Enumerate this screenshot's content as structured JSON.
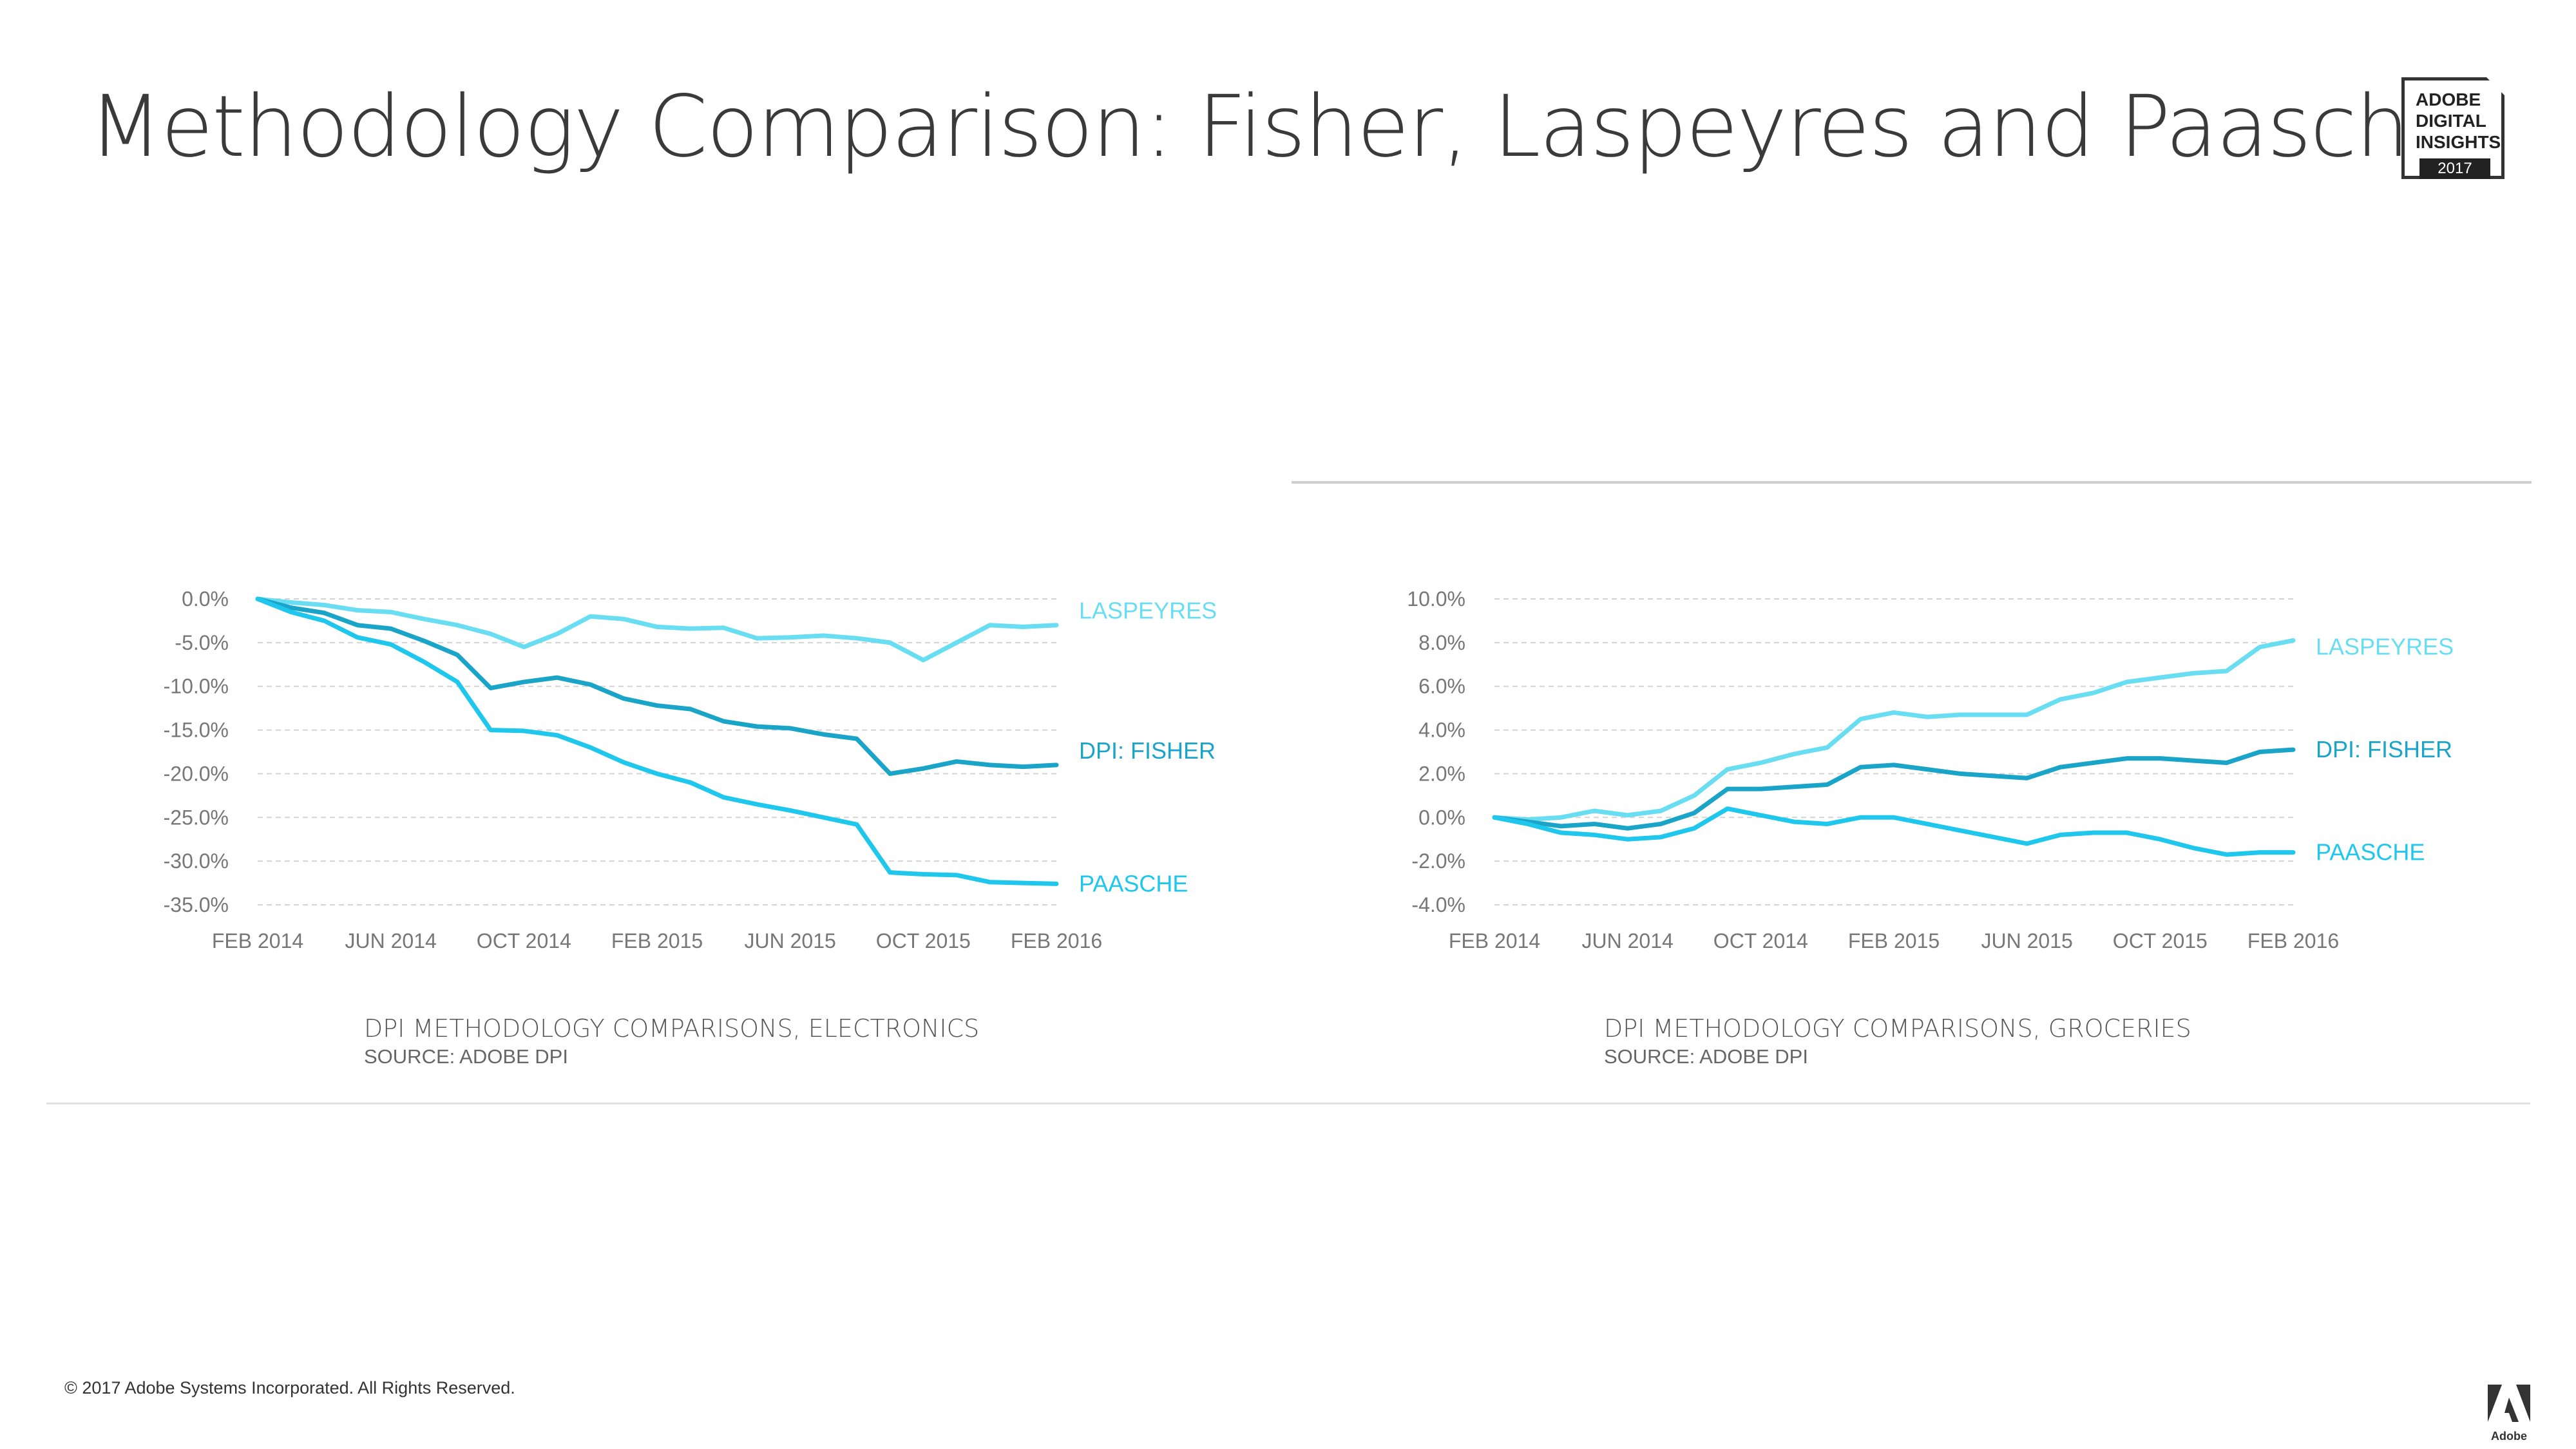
{
  "page": {
    "title": "Methodology Comparison: Fisher, Laspeyres and Paasche",
    "badge": {
      "lines": "ADOBE\nDIGITAL\nINSIGHTS",
      "year": "2017"
    },
    "footer": "© 2017 Adobe Systems Incorporated.  All Rights Reserved.",
    "adobe_logo_label": "Adobe"
  },
  "colors": {
    "laspeyres": "#69DDF2",
    "fisher": "#1AA5C8",
    "paasche": "#1FC7EC",
    "title": "#3a3a3a"
  },
  "chart_data": [
    {
      "type": "line",
      "title": "",
      "caption": "DPI METHODOLOGY COMPARISONS, ELECTRONICS",
      "source": "SOURCE: ADOBE DPI",
      "xlabel": "",
      "ylabel": "",
      "ylim": [
        -35,
        0
      ],
      "yticks": [
        "0.0%",
        "-5.0%",
        "-10.0%",
        "-15.0%",
        "-20.0%",
        "-25.0%",
        "-30.0%",
        "-35.0%"
      ],
      "ytick_values": [
        0,
        -5,
        -10,
        -15,
        -20,
        -25,
        -30,
        -35
      ],
      "xticks": [
        "FEB 2014",
        "JUN 2014",
        "OCT 2014",
        "FEB 2015",
        "JUN 2015",
        "OCT 2015",
        "FEB 2016"
      ],
      "xtick_months": [
        0,
        4,
        8,
        12,
        16,
        20,
        24
      ],
      "x_months": [
        0,
        1,
        2,
        3,
        4,
        5,
        6,
        7,
        8,
        9,
        10,
        11,
        12,
        13,
        14,
        15,
        16,
        17,
        18,
        19,
        20,
        21,
        22,
        23,
        24
      ],
      "grid": true,
      "series": [
        {
          "name": "LASPEYRES",
          "color_key": "laspeyres",
          "values": [
            0,
            -0.4,
            -0.7,
            -1.3,
            -1.5,
            -2.3,
            -3.0,
            -4.0,
            -5.5,
            -4.0,
            -2.0,
            -2.3,
            -3.2,
            -3.4,
            -3.3,
            -4.5,
            -4.4,
            -4.2,
            -4.5,
            -5.0,
            -7.0,
            -5.0,
            -3.0,
            -3.2,
            -3.0
          ]
        },
        {
          "name": "DPI: FISHER",
          "color_key": "fisher",
          "values": [
            0,
            -1.0,
            -1.6,
            -3.0,
            -3.4,
            -4.8,
            -6.4,
            -10.2,
            -9.5,
            -9.0,
            -9.8,
            -11.4,
            -12.2,
            -12.6,
            -14.0,
            -14.6,
            -14.8,
            -15.5,
            -16.0,
            -20.0,
            -19.4,
            -18.6,
            -19.0,
            -19.2,
            -19.0
          ]
        },
        {
          "name": "PAASCHE",
          "color_key": "paasche",
          "values": [
            0,
            -1.5,
            -2.5,
            -4.4,
            -5.2,
            -7.2,
            -9.5,
            -15.0,
            -15.1,
            -15.6,
            -17.0,
            -18.7,
            -20.0,
            -21.0,
            -22.7,
            -23.5,
            -24.2,
            -25.0,
            -25.8,
            -31.3,
            -31.5,
            -31.6,
            -32.4,
            -32.5,
            -32.6
          ]
        }
      ]
    },
    {
      "type": "line",
      "title": "",
      "caption": "DPI METHODOLOGY COMPARISONS, GROCERIES",
      "source": "SOURCE: ADOBE DPI",
      "xlabel": "",
      "ylabel": "",
      "ylim": [
        -4,
        10
      ],
      "yticks": [
        "10.0%",
        "8.0%",
        "6.0%",
        "4.0%",
        "2.0%",
        "0.0%",
        "-2.0%",
        "-4.0%"
      ],
      "ytick_values": [
        10,
        8,
        6,
        4,
        2,
        0,
        -2,
        -4
      ],
      "xticks": [
        "FEB 2014",
        "JUN 2014",
        "OCT 2014",
        "FEB 2015",
        "JUN 2015",
        "OCT 2015",
        "FEB 2016"
      ],
      "xtick_months": [
        0,
        4,
        8,
        12,
        16,
        20,
        24
      ],
      "x_months": [
        0,
        1,
        2,
        3,
        4,
        5,
        6,
        7,
        8,
        9,
        10,
        11,
        12,
        13,
        14,
        15,
        16,
        17,
        18,
        19,
        20,
        21,
        22,
        23,
        24
      ],
      "grid": true,
      "series": [
        {
          "name": "LASPEYRES",
          "color_key": "laspeyres",
          "values": [
            0,
            -0.1,
            0.0,
            0.3,
            0.1,
            0.3,
            1.0,
            2.2,
            2.5,
            2.9,
            3.2,
            4.5,
            4.8,
            4.6,
            4.7,
            4.7,
            4.7,
            5.4,
            5.7,
            6.2,
            6.4,
            6.6,
            6.7,
            7.8,
            8.1
          ]
        },
        {
          "name": "DPI: FISHER",
          "color_key": "fisher",
          "values": [
            0,
            -0.2,
            -0.4,
            -0.3,
            -0.5,
            -0.3,
            0.2,
            1.3,
            1.3,
            1.4,
            1.5,
            2.3,
            2.4,
            2.2,
            2.0,
            1.9,
            1.8,
            2.3,
            2.5,
            2.7,
            2.7,
            2.6,
            2.5,
            3.0,
            3.1
          ]
        },
        {
          "name": "PAASCHE",
          "color_key": "paasche",
          "values": [
            0,
            -0.3,
            -0.7,
            -0.8,
            -1.0,
            -0.9,
            -0.5,
            0.4,
            0.1,
            -0.2,
            -0.3,
            0.0,
            0.0,
            -0.3,
            -0.6,
            -0.9,
            -1.2,
            -0.8,
            -0.7,
            -0.7,
            -1.0,
            -1.4,
            -1.7,
            -1.6,
            -1.6
          ]
        }
      ]
    }
  ]
}
